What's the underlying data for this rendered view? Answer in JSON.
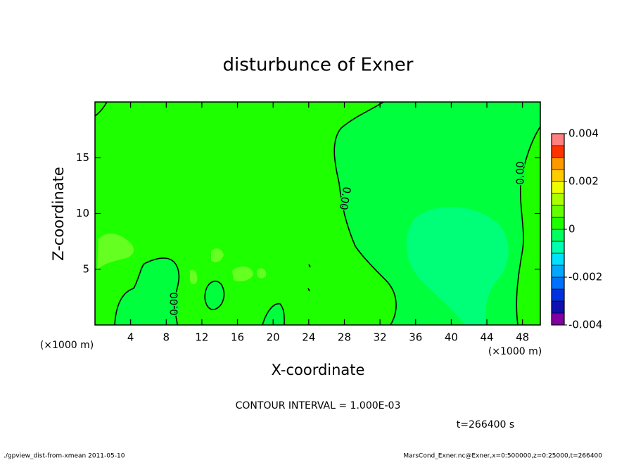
{
  "chart_data": {
    "type": "contour",
    "title": "disturbunce of Exner",
    "x_label": "X-coordinate",
    "y_label": "Z-coordinate",
    "x_unit": "(×1000 m)",
    "y_unit": "(×1000 m)",
    "xlim": [
      0,
      50
    ],
    "xticks": [
      4,
      8,
      12,
      16,
      20,
      24,
      28,
      32,
      36,
      40,
      44,
      48
    ],
    "ylim": [
      0,
      20
    ],
    "yticks": [
      5,
      10,
      15
    ],
    "regions": [
      {
        "level": 0,
        "color": "#1eff00"
      },
      {
        "level": -0.0005,
        "color": "#00ff3c"
      },
      {
        "level": -0.001,
        "color": "#00ff78"
      },
      {
        "level": -0.0005,
        "color": "#00ff3c"
      },
      {
        "level": -0.0005,
        "color": "#00ff3c"
      },
      {
        "level": -0.0005,
        "color": "#00ff3c"
      },
      {
        "level": 0.0005,
        "color": "#66ff22"
      }
    ],
    "contour_labels": [
      {
        "value": 0,
        "label": "0.00"
      },
      {
        "value": 0,
        "label": "0.00"
      },
      {
        "value": 0,
        "label": "0.00"
      }
    ],
    "colorbar": {
      "levels": [
        -0.004,
        -0.0035,
        -0.003,
        -0.0025,
        -0.002,
        -0.0015,
        -0.001,
        -0.0005,
        0,
        0.0005,
        0.001,
        0.0015,
        0.002,
        0.0025,
        0.003,
        0.0035,
        0.004
      ],
      "colors": [
        "#8000a0",
        "#1010b0",
        "#0030e0",
        "#0070ff",
        "#00a8ff",
        "#00e0ff",
        "#00ffb0",
        "#00ff60",
        "#1eff00",
        "#66ff00",
        "#aaff00",
        "#eeff00",
        "#ffcc00",
        "#ff9900",
        "#ff3300",
        "#ff8080"
      ],
      "ticks": [
        -0.004,
        -0.002,
        0,
        0.002,
        0.004
      ]
    },
    "contour_interval": "CONTOUR INTERVAL = 1.000E-03",
    "time_label": "t=266400 s",
    "footer_left": "./gpview_dist-from-xmean  2011-05-10",
    "footer_right": "MarsCond_Exner.nc@Exner,x=0:500000,z=0:25000,t=266400"
  }
}
